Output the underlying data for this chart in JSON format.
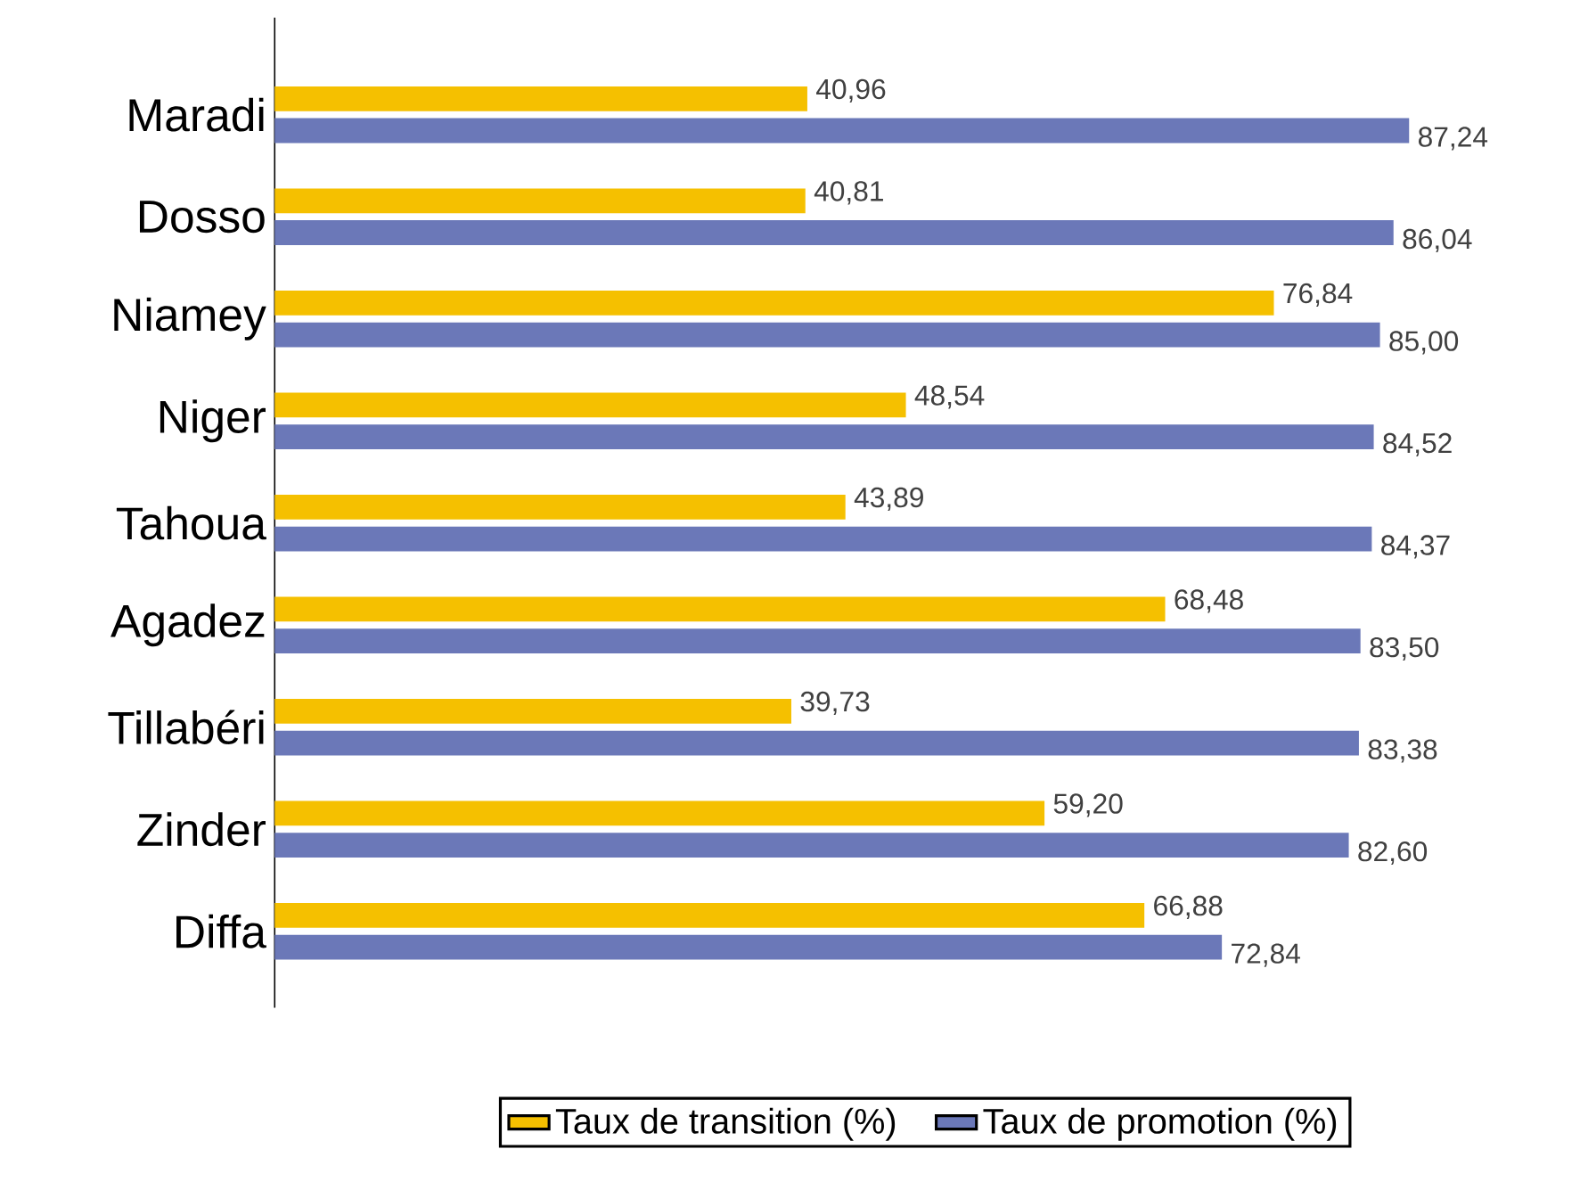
{
  "chart_data": {
    "type": "bar",
    "orientation": "horizontal",
    "categories": [
      "Maradi",
      "Dosso",
      "Niamey",
      "Niger",
      "Tahoua",
      "Agadez",
      "Tillabéri",
      "Zinder",
      "Diffa"
    ],
    "series": [
      {
        "name": "Taux de transition (%)",
        "color": "#f5c000",
        "values": [
          40.96,
          40.81,
          76.84,
          48.54,
          43.89,
          68.48,
          39.73,
          59.2,
          66.88
        ],
        "value_labels": [
          "40,96",
          "40,81",
          "76,84",
          "48,54",
          "43,89",
          "68,48",
          "39,73",
          "59,20",
          "66,88"
        ]
      },
      {
        "name": "Taux de promotion (%)",
        "color": "#6b78b8",
        "values": [
          87.24,
          86.04,
          85.0,
          84.52,
          84.37,
          83.5,
          83.38,
          82.6,
          72.84
        ],
        "value_labels": [
          "87,24",
          "86,04",
          "85,00",
          "84,52",
          "84,37",
          "83,50",
          "83,38",
          "82,60",
          "72,84"
        ]
      }
    ],
    "tick_labels": "y",
    "grid": false,
    "legend": "bottom"
  }
}
